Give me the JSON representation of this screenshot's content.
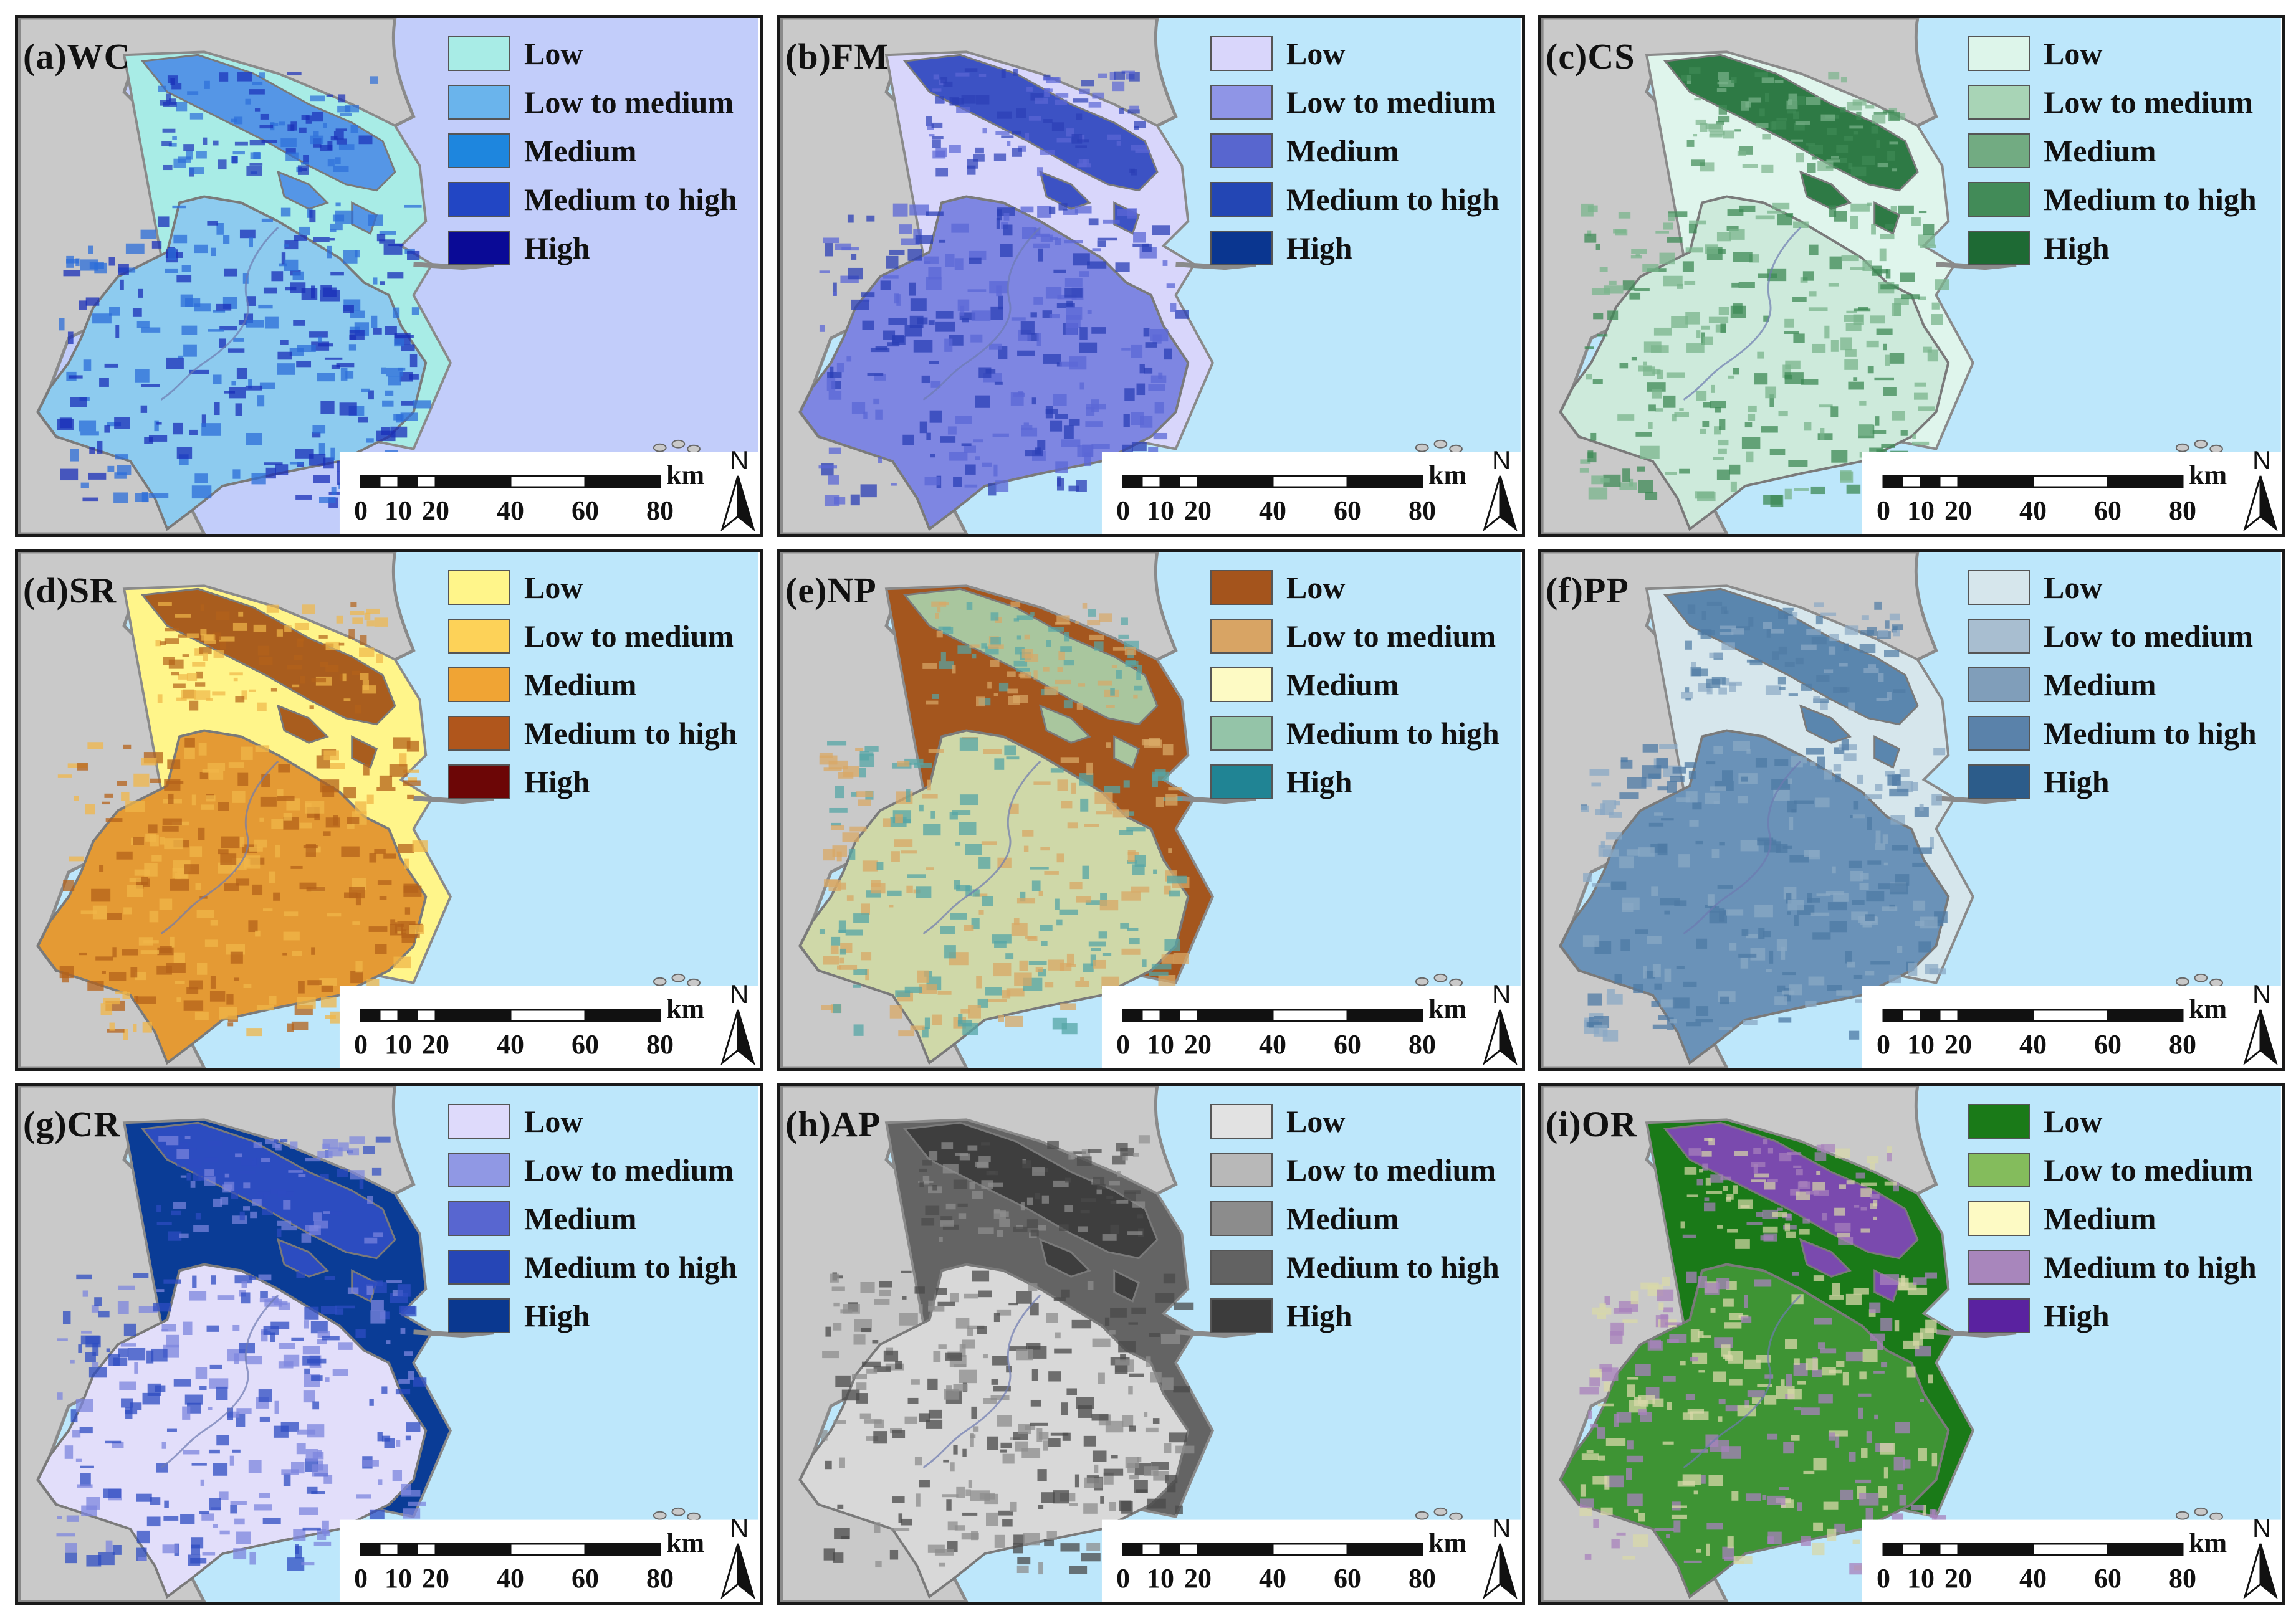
{
  "panels": [
    {
      "id": "a",
      "title": "(a)WC",
      "sea": "#c2cdfa",
      "coast": "#a8ece6",
      "estuary": "#a8ece6",
      "island": "#5596e6",
      "main": "#8dcbef",
      "patch": "#1a2fb8",
      "patch2": "#2c6ed8",
      "legend": [
        {
          "label": "Low",
          "color": "#a8ece6"
        },
        {
          "label": "Low to medium",
          "color": "#6ab4ec"
        },
        {
          "label": "Medium",
          "color": "#1e86de"
        },
        {
          "label": "Medium to high",
          "color": "#2246c4"
        },
        {
          "label": "High",
          "color": "#0a0a96"
        }
      ]
    },
    {
      "id": "b",
      "title": "(b)FM",
      "sea": "#bde7fb",
      "coast": "#d8d6fb",
      "estuary": "#d8d6fb",
      "island": "#3c52c4",
      "main": "#7e86e2",
      "patch": "#2b3fb6",
      "patch2": "#5b67d6",
      "legend": [
        {
          "label": "Low",
          "color": "#d9d6fb"
        },
        {
          "label": "Low to medium",
          "color": "#8f95e6"
        },
        {
          "label": "Medium",
          "color": "#5866cf"
        },
        {
          "label": "Medium to high",
          "color": "#2346b4"
        },
        {
          "label": "High",
          "color": "#0a3690"
        }
      ]
    },
    {
      "id": "c",
      "title": "(c)CS",
      "sea": "#bde7fb",
      "coast": "#dff5ec",
      "estuary": "#dff5ec",
      "island": "#2e7a45",
      "main": "#cdeadb",
      "patch": "#3e8a56",
      "patch2": "#7ab48c",
      "legend": [
        {
          "label": "Low",
          "color": "#ddf5ea"
        },
        {
          "label": "Low to medium",
          "color": "#a8d4b6"
        },
        {
          "label": "Medium",
          "color": "#72ab82"
        },
        {
          "label": "Medium to high",
          "color": "#428b58"
        },
        {
          "label": "High",
          "color": "#1e6a34"
        }
      ]
    },
    {
      "id": "d",
      "title": "(d)SR",
      "sea": "#bde7fb",
      "coast": "#fff58a",
      "estuary": "#fff58a",
      "island": "#a95d1e",
      "main": "#e49a34",
      "patch": "#b4621a",
      "patch2": "#f0b648",
      "legend": [
        {
          "label": "Low",
          "color": "#fff58a"
        },
        {
          "label": "Low to medium",
          "color": "#fdd258"
        },
        {
          "label": "Medium",
          "color": "#f0a434"
        },
        {
          "label": "Medium to high",
          "color": "#b0561c"
        },
        {
          "label": "High",
          "color": "#6c0606"
        }
      ]
    },
    {
      "id": "e",
      "title": "(e)NP",
      "sea": "#bde7fb",
      "coast": "#a4561e",
      "estuary": "#a4561e",
      "island": "#a9c69e",
      "main": "#cfd8a8",
      "patch": "#56a6a6",
      "patch2": "#d8a866",
      "legend": [
        {
          "label": "Low",
          "color": "#a4541c"
        },
        {
          "label": "Low to medium",
          "color": "#d8a464"
        },
        {
          "label": "Medium",
          "color": "#fdfac4"
        },
        {
          "label": "Medium to high",
          "color": "#94c4a8"
        },
        {
          "label": "High",
          "color": "#208494"
        }
      ]
    },
    {
      "id": "f",
      "title": "(f)PP",
      "sea": "#bde7fb",
      "coast": "#d6e6ec",
      "estuary": "#d6e6ec",
      "island": "#5a86ae",
      "main": "#6a92b8",
      "patch": "#4e7aa4",
      "patch2": "#8aa8c4",
      "legend": [
        {
          "label": "Low",
          "color": "#d6e6ec"
        },
        {
          "label": "Low to medium",
          "color": "#a8bed0"
        },
        {
          "label": "Medium",
          "color": "#809eba"
        },
        {
          "label": "Medium to high",
          "color": "#5a82aa"
        },
        {
          "label": "High",
          "color": "#2c5c8a"
        }
      ]
    },
    {
      "id": "g",
      "title": "(g)CR",
      "sea": "#bde7fb",
      "coast": "#0a3c96",
      "estuary": "#0a3c96",
      "island": "#2c4cc0",
      "main": "#e2defa",
      "patch": "#2e4cc2",
      "patch2": "#7c86de",
      "legend": [
        {
          "label": "Low",
          "color": "#dedafb"
        },
        {
          "label": "Low to medium",
          "color": "#9098e4"
        },
        {
          "label": "Medium",
          "color": "#5866d0"
        },
        {
          "label": "Medium to high",
          "color": "#2646b6"
        },
        {
          "label": "High",
          "color": "#0a3890"
        }
      ]
    },
    {
      "id": "h",
      "title": "(h)AP",
      "sea": "#bde7fb",
      "coast": "#646464",
      "estuary": "#646464",
      "island": "#3e3e3e",
      "main": "#d8d8d8",
      "patch": "#4a4a4a",
      "patch2": "#8e8e8e",
      "legend": [
        {
          "label": "Low",
          "color": "#e2e2e2"
        },
        {
          "label": "Low to medium",
          "color": "#b8b8b8"
        },
        {
          "label": "Medium",
          "color": "#8c8c8c"
        },
        {
          "label": "Medium to high",
          "color": "#626262"
        },
        {
          "label": "High",
          "color": "#3c3c3c"
        }
      ]
    },
    {
      "id": "i",
      "title": "(i)OR",
      "sea": "#bde7fb",
      "coast": "#1a7a18",
      "estuary": "#1a7a18",
      "island": "#7a4aae",
      "main": "#3e9434",
      "patch": "#d8d8a8",
      "patch2": "#a882bc",
      "legend": [
        {
          "label": "Low",
          "color": "#1a7a18"
        },
        {
          "label": "Low to medium",
          "color": "#84bc5c"
        },
        {
          "label": "Medium",
          "color": "#fdfac4"
        },
        {
          "label": "Medium to high",
          "color": "#a886bc"
        },
        {
          "label": "High",
          "color": "#5a22a0"
        }
      ]
    }
  ],
  "scalebar": {
    "unit": "km",
    "ticks": [
      "0",
      "10",
      "20",
      "40",
      "60",
      "80"
    ]
  },
  "north_arrow": {
    "label": "N"
  },
  "land_color": "#c9c9c9"
}
